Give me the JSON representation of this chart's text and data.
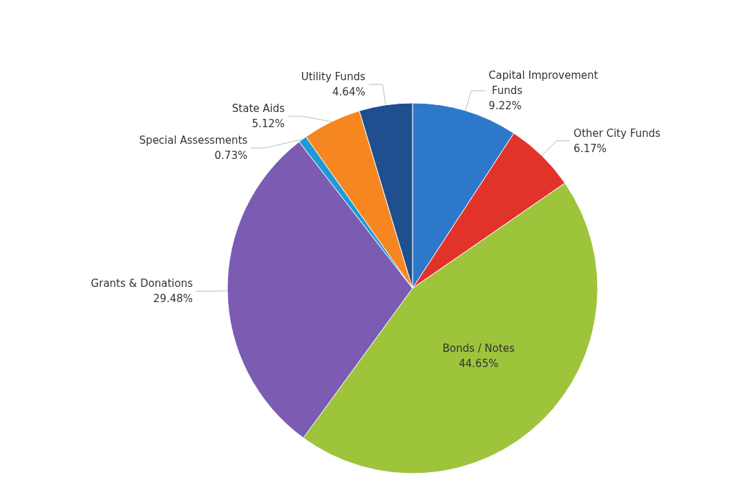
{
  "chart_data": {
    "type": "pie",
    "categories": [
      "Capital Improvement Funds",
      "Other City Funds",
      "Bonds / Notes",
      "Grants & Donations",
      "Special Assessments",
      "State Aids",
      "Utility Funds"
    ],
    "values": [
      9.22,
      6.17,
      44.65,
      29.48,
      0.73,
      5.12,
      4.64
    ],
    "value_labels": [
      "9.22%",
      "6.17%",
      "44.65%",
      "29.48%",
      "0.73%",
      "5.12%",
      "4.64%"
    ],
    "colors": [
      "#2e78cc",
      "#e2332b",
      "#9dc43b",
      "#7b5cb2",
      "#1e9ad8",
      "#f6861f",
      "#1f4f8e"
    ],
    "legend": false
  }
}
